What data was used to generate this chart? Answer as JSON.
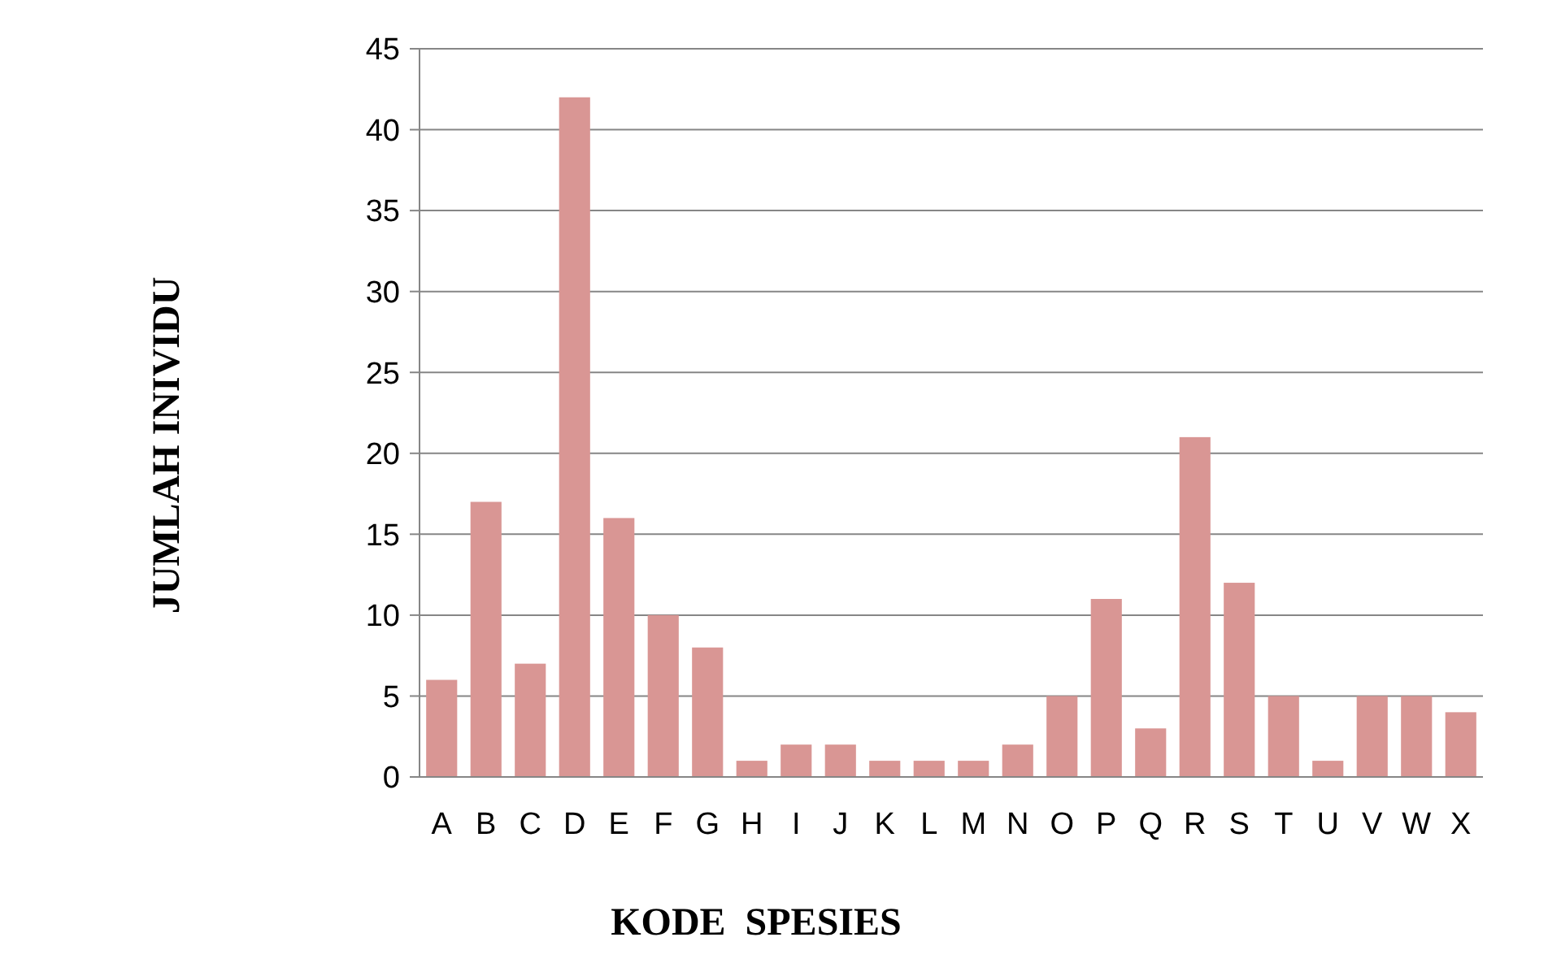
{
  "chart_data": {
    "type": "bar",
    "xlabel": "KODE  SPESIES",
    "ylabel": "JUMLAH INIVIDU",
    "categories": [
      "A",
      "B",
      "C",
      "D",
      "E",
      "F",
      "G",
      "H",
      "I",
      "J",
      "K",
      "L",
      "M",
      "N",
      "O",
      "P",
      "Q",
      "R",
      "S",
      "T",
      "U",
      "V",
      "W",
      "X"
    ],
    "values": [
      6,
      17,
      7,
      42,
      16,
      10,
      8,
      1,
      2,
      2,
      1,
      1,
      1,
      2,
      5,
      11,
      3,
      21,
      12,
      5,
      1,
      5,
      5,
      4
    ],
    "color": "#d99694",
    "ylim": [
      0,
      45
    ],
    "yticks": [
      0,
      5,
      10,
      15,
      20,
      25,
      30,
      35,
      40,
      45
    ],
    "grid": "y"
  }
}
